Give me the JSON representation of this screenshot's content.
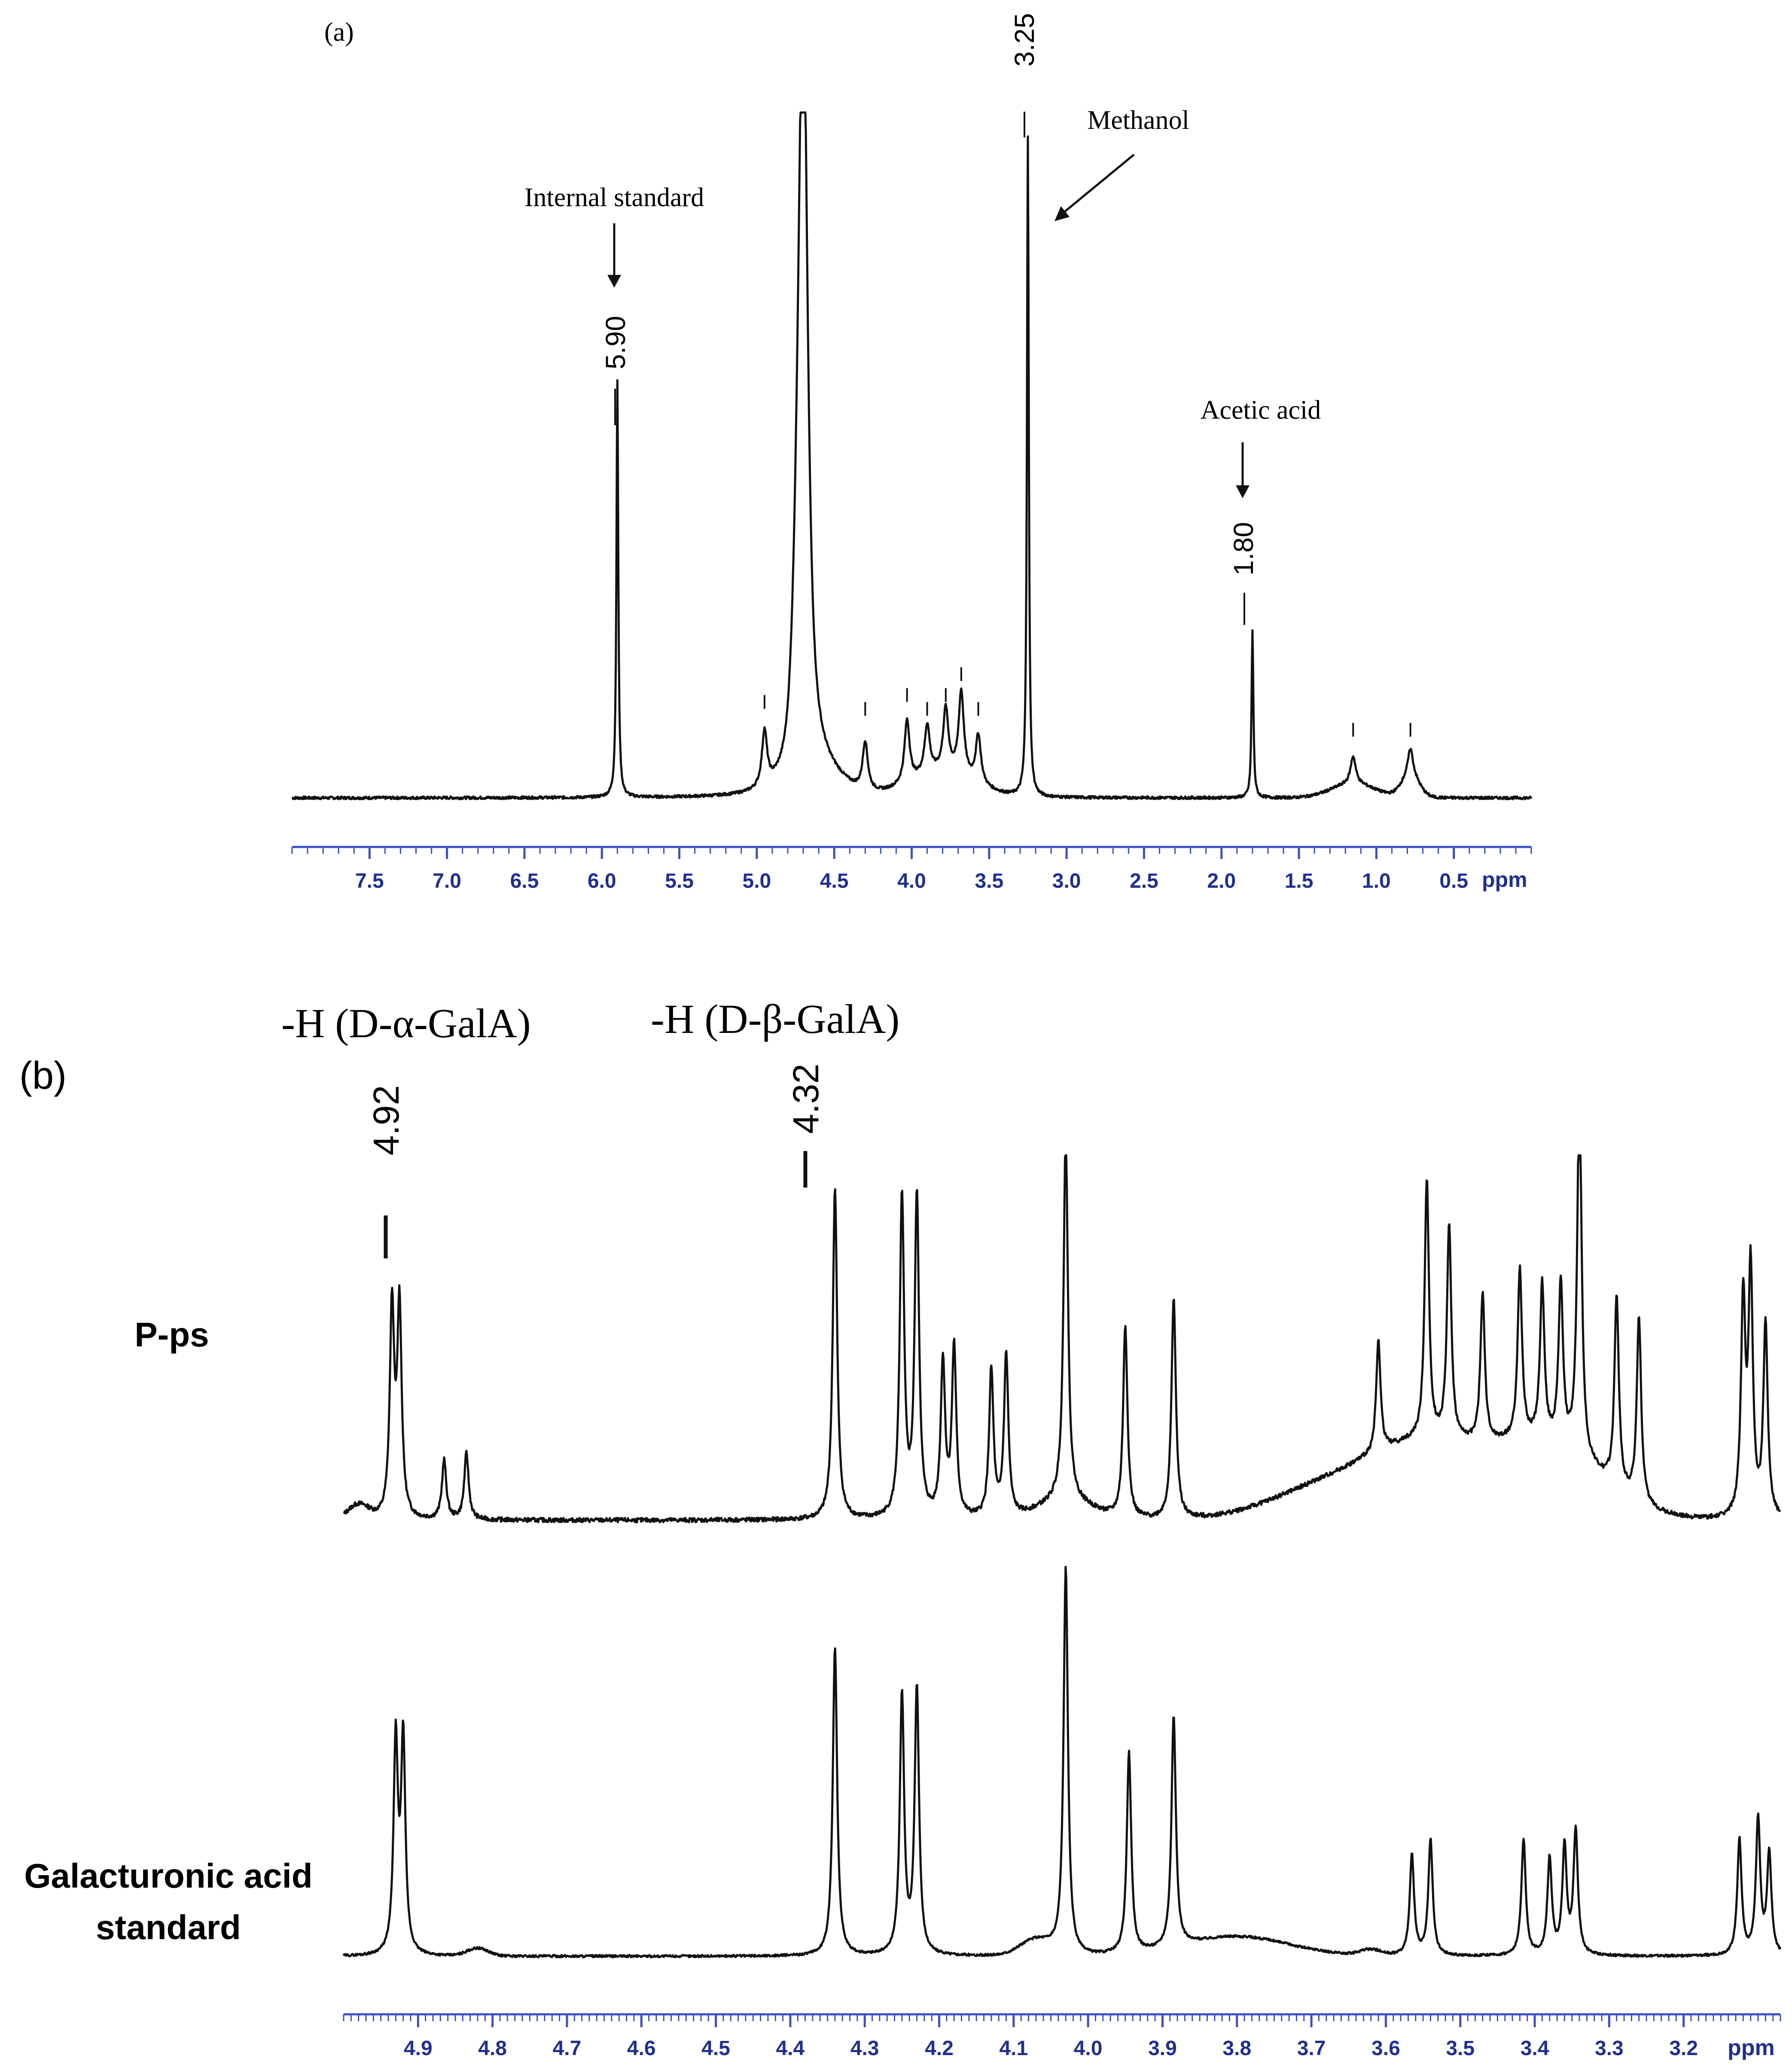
{
  "panel_a": {
    "label": "(a)",
    "annotations": {
      "internal_standard": "Internal standard",
      "methanol": "Methanol",
      "acetic_acid": "Acetic acid"
    },
    "peak_labels": [
      "5.90",
      "3.25",
      "1.80"
    ],
    "axis_unit": "ppm",
    "ticks": [
      "7.5",
      "7.0",
      "6.5",
      "6.0",
      "5.5",
      "5.0",
      "4.5",
      "4.0",
      "3.5",
      "3.0",
      "2.5",
      "2.0",
      "1.5",
      "1.0",
      "0.5"
    ]
  },
  "panel_b": {
    "label": "(b)",
    "annotations": {
      "alpha": "-H (D-α-GalA)",
      "beta": "-H (D-β-GalA)"
    },
    "peak_labels": [
      "4.92",
      "4.32"
    ],
    "trace_labels": {
      "pps": "P-ps",
      "standard_line1": "Galacturonic acid",
      "standard_line2": "standard"
    },
    "axis_unit": "ppm",
    "ticks": [
      "4.9",
      "4.8",
      "4.7",
      "4.6",
      "4.5",
      "4.4",
      "4.3",
      "4.2",
      "4.1",
      "4.0",
      "3.9",
      "3.8",
      "3.7",
      "3.6",
      "3.5",
      "3.4",
      "3.3",
      "3.2"
    ]
  },
  "chart_data": [
    {
      "type": "line",
      "title": "",
      "xlabel": "ppm",
      "xlim": [
        8.0,
        0.0
      ],
      "x_reversed": true,
      "peaks": [
        {
          "x": 5.9,
          "height": 0.6,
          "label": "5.90"
        },
        {
          "x": 4.7,
          "height": 1.0
        },
        {
          "x": 3.25,
          "height": 0.95,
          "label": "3.25"
        },
        {
          "x": 1.8,
          "height": 0.24,
          "label": "1.80"
        },
        {
          "x": 4.95,
          "height": 0.08
        },
        {
          "x": 4.3,
          "height": 0.07
        },
        {
          "x": 4.03,
          "height": 0.09
        },
        {
          "x": 3.9,
          "height": 0.07
        },
        {
          "x": 3.78,
          "height": 0.09
        },
        {
          "x": 3.68,
          "height": 0.12
        },
        {
          "x": 3.57,
          "height": 0.07
        },
        {
          "x": 1.15,
          "height": 0.04
        },
        {
          "x": 0.78,
          "height": 0.04
        }
      ]
    },
    {
      "type": "line",
      "title": "",
      "xlabel": "ppm",
      "xlim": [
        5.0,
        3.07
      ],
      "x_reversed": true,
      "series": [
        {
          "name": "P-ps",
          "peaks": [
            {
              "x": 4.935,
              "height": 0.57
            },
            {
              "x": 4.925,
              "height": 0.57
            },
            {
              "x": 4.865,
              "height": 0.16
            },
            {
              "x": 4.835,
              "height": 0.18
            },
            {
              "x": 4.34,
              "height": 0.9
            },
            {
              "x": 4.25,
              "height": 0.87
            },
            {
              "x": 4.23,
              "height": 0.87
            },
            {
              "x": 4.195,
              "height": 0.42
            },
            {
              "x": 4.18,
              "height": 0.46
            },
            {
              "x": 4.13,
              "height": 0.4
            },
            {
              "x": 4.11,
              "height": 0.44
            },
            {
              "x": 4.03,
              "height": 1.0
            },
            {
              "x": 3.95,
              "height": 0.52
            },
            {
              "x": 3.885,
              "height": 0.6
            },
            {
              "x": 3.61,
              "height": 0.3
            },
            {
              "x": 3.545,
              "height": 0.7
            },
            {
              "x": 3.515,
              "height": 0.58
            },
            {
              "x": 3.47,
              "height": 0.4
            },
            {
              "x": 3.42,
              "height": 0.46
            },
            {
              "x": 3.39,
              "height": 0.42
            },
            {
              "x": 3.365,
              "height": 0.44
            },
            {
              "x": 3.34,
              "height": 1.0
            },
            {
              "x": 3.29,
              "height": 0.52
            },
            {
              "x": 3.26,
              "height": 0.5
            },
            {
              "x": 3.12,
              "height": 0.58
            },
            {
              "x": 3.11,
              "height": 0.66
            },
            {
              "x": 3.09,
              "height": 0.52
            }
          ]
        },
        {
          "name": "Galacturonic acid standard",
          "peaks": [
            {
              "x": 4.93,
              "height": 0.55
            },
            {
              "x": 4.92,
              "height": 0.55
            },
            {
              "x": 4.34,
              "height": 0.8
            },
            {
              "x": 4.25,
              "height": 0.67
            },
            {
              "x": 4.23,
              "height": 0.69
            },
            {
              "x": 4.03,
              "height": 1.0
            },
            {
              "x": 3.945,
              "height": 0.52
            },
            {
              "x": 3.885,
              "height": 0.6
            },
            {
              "x": 3.565,
              "height": 0.26
            },
            {
              "x": 3.54,
              "height": 0.3
            },
            {
              "x": 3.415,
              "height": 0.3
            },
            {
              "x": 3.38,
              "height": 0.25
            },
            {
              "x": 3.36,
              "height": 0.28
            },
            {
              "x": 3.345,
              "height": 0.32
            },
            {
              "x": 3.125,
              "height": 0.3
            },
            {
              "x": 3.1,
              "height": 0.35
            },
            {
              "x": 3.085,
              "height": 0.26
            }
          ]
        }
      ]
    }
  ]
}
